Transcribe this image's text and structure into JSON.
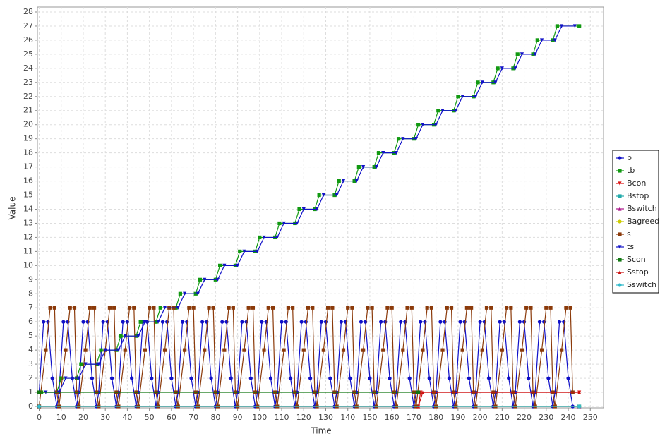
{
  "chart_data": {
    "type": "line",
    "xlabel": "Time",
    "ylabel": "Value",
    "xlim": [
      -0.8,
      256
    ],
    "ylim": [
      -0.1,
      28.35
    ],
    "xticks": [
      0,
      10,
      20,
      30,
      40,
      50,
      60,
      70,
      80,
      90,
      100,
      110,
      120,
      130,
      140,
      150,
      160,
      170,
      180,
      190,
      200,
      210,
      220,
      230,
      240,
      250
    ],
    "yticks": [
      0,
      1,
      2,
      3,
      4,
      5,
      6,
      7,
      8,
      9,
      10,
      11,
      12,
      13,
      14,
      15,
      16,
      17,
      18,
      19,
      20,
      21,
      22,
      23,
      24,
      25,
      26,
      27,
      28
    ],
    "grid": true,
    "legend": "right",
    "series": [
      {
        "name": "b",
        "color": "#1010c8",
        "marker": "circle",
        "x": [
          0,
          2,
          4,
          6,
          8,
          9,
          11,
          13,
          15,
          17,
          18,
          20,
          22,
          24,
          26,
          27,
          29,
          31,
          33,
          35,
          36,
          38,
          40,
          42,
          44,
          45,
          47,
          49,
          51,
          53,
          54,
          56,
          58,
          60,
          62,
          63,
          65,
          67,
          69,
          71,
          72,
          74,
          76,
          78,
          80,
          81,
          83,
          85,
          87,
          89,
          90,
          92,
          94,
          96,
          98,
          99,
          101,
          103,
          105,
          107,
          108,
          110,
          112,
          114,
          116,
          117,
          119,
          121,
          123,
          125,
          126,
          128,
          130,
          132,
          134,
          135,
          137,
          139,
          141,
          143,
          144,
          146,
          148,
          150,
          152,
          153,
          155,
          157,
          159,
          161,
          162,
          164,
          166,
          168,
          170,
          171,
          173,
          175,
          177,
          179,
          180,
          182,
          184,
          186,
          188,
          189,
          191,
          193,
          195,
          197,
          198,
          200,
          202,
          204,
          206,
          207,
          209,
          211,
          213,
          215,
          216,
          218,
          220,
          222,
          224,
          225,
          227,
          229,
          231,
          233,
          234,
          236,
          238,
          240,
          242
        ],
        "values": [
          1,
          6,
          6,
          2,
          0,
          1,
          6,
          6,
          2,
          0,
          1,
          6,
          6,
          2,
          0,
          1,
          6,
          6,
          2,
          0,
          1,
          6,
          6,
          2,
          0,
          1,
          6,
          6,
          2,
          0,
          1,
          6,
          6,
          2,
          0,
          1,
          6,
          6,
          2,
          0,
          1,
          6,
          6,
          2,
          0,
          1,
          6,
          6,
          2,
          0,
          1,
          6,
          6,
          2,
          0,
          1,
          6,
          6,
          2,
          0,
          1,
          6,
          6,
          2,
          0,
          1,
          6,
          6,
          2,
          0,
          1,
          6,
          6,
          2,
          0,
          1,
          6,
          6,
          2,
          0,
          1,
          6,
          6,
          2,
          0,
          1,
          6,
          6,
          2,
          0,
          1,
          6,
          6,
          2,
          0,
          1,
          6,
          6,
          2,
          0,
          1,
          6,
          6,
          2,
          0,
          1,
          6,
          6,
          2,
          0,
          1,
          6,
          6,
          2,
          0,
          1,
          6,
          6,
          2,
          0,
          1,
          6,
          6,
          2,
          0,
          1,
          6,
          6,
          2,
          0,
          1,
          6,
          6,
          2,
          0
        ]
      },
      {
        "name": "tb",
        "color": "#119911",
        "marker": "square",
        "x": [
          1,
          8,
          10,
          17,
          19,
          26,
          28,
          35,
          37,
          44,
          46,
          53,
          55,
          62,
          64,
          71,
          73,
          80,
          82,
          89,
          91,
          98,
          100,
          107,
          109,
          116,
          118,
          125,
          127,
          134,
          136,
          143,
          145,
          152,
          154,
          161,
          163,
          170,
          172,
          179,
          181,
          188,
          190,
          197,
          199,
          206,
          208,
          215,
          217,
          224,
          226,
          233,
          235,
          245
        ],
        "values": [
          1,
          1,
          2,
          2,
          3,
          3,
          4,
          4,
          5,
          5,
          6,
          6,
          7,
          7,
          8,
          8,
          9,
          9,
          10,
          10,
          11,
          11,
          12,
          12,
          13,
          13,
          14,
          14,
          15,
          15,
          16,
          16,
          17,
          17,
          18,
          18,
          19,
          19,
          20,
          20,
          21,
          21,
          22,
          22,
          23,
          23,
          24,
          24,
          25,
          25,
          26,
          26,
          27,
          27
        ]
      },
      {
        "name": "Bcon",
        "color": "#dd1111",
        "marker": "triangle-down",
        "x": [
          0,
          172,
          173,
          245
        ],
        "values": [
          0,
          0,
          1,
          1
        ]
      },
      {
        "name": "Bstop",
        "color": "#22aaaa",
        "marker": "square",
        "x": [
          0,
          245
        ],
        "values": [
          0,
          0
        ]
      },
      {
        "name": "Bswitch",
        "color": "#aa1188",
        "marker": "triangle-up",
        "x": [
          0,
          245
        ],
        "values": [
          0,
          0
        ]
      },
      {
        "name": "Bagreed",
        "color": "#cccc00",
        "marker": "circle",
        "x": [
          0,
          245
        ],
        "values": [
          0,
          0
        ]
      },
      {
        "name": "s",
        "color": "#8b3a0a",
        "marker": "square",
        "x": [
          0,
          3,
          5,
          7,
          8,
          9,
          12,
          14,
          16,
          17,
          18,
          21,
          23,
          25,
          26,
          27,
          30,
          32,
          34,
          35,
          36,
          39,
          41,
          43,
          44,
          45,
          48,
          50,
          52,
          53,
          54,
          57,
          59,
          61,
          62,
          63,
          66,
          68,
          70,
          71,
          72,
          75,
          77,
          79,
          80,
          81,
          84,
          86,
          88,
          89,
          90,
          93,
          95,
          97,
          98,
          99,
          102,
          104,
          106,
          107,
          108,
          111,
          113,
          115,
          116,
          117,
          120,
          122,
          124,
          125,
          126,
          129,
          131,
          133,
          134,
          135,
          138,
          140,
          142,
          143,
          144,
          147,
          149,
          151,
          152,
          153,
          156,
          158,
          160,
          161,
          162,
          165,
          167,
          169,
          170,
          171,
          174,
          176,
          178,
          179,
          180,
          183,
          185,
          187,
          188,
          189,
          192,
          194,
          196,
          197,
          198,
          201,
          203,
          205,
          206,
          207,
          210,
          212,
          214,
          215,
          216,
          219,
          221,
          223,
          224,
          225,
          228,
          230,
          232,
          233,
          234,
          237,
          239,
          241,
          242
        ],
        "values": [
          0,
          4,
          7,
          7,
          1,
          0,
          4,
          7,
          7,
          1,
          0,
          4,
          7,
          7,
          1,
          0,
          4,
          7,
          7,
          1,
          0,
          4,
          7,
          7,
          1,
          0,
          4,
          7,
          7,
          1,
          0,
          4,
          7,
          7,
          1,
          0,
          4,
          7,
          7,
          1,
          0,
          4,
          7,
          7,
          1,
          0,
          4,
          7,
          7,
          1,
          0,
          4,
          7,
          7,
          1,
          0,
          4,
          7,
          7,
          1,
          0,
          4,
          7,
          7,
          1,
          0,
          4,
          7,
          7,
          1,
          0,
          4,
          7,
          7,
          1,
          0,
          4,
          7,
          7,
          1,
          0,
          4,
          7,
          7,
          1,
          0,
          4,
          7,
          7,
          1,
          0,
          4,
          7,
          7,
          1,
          0,
          4,
          7,
          7,
          1,
          0,
          4,
          7,
          7,
          1,
          0,
          4,
          7,
          7,
          1,
          0,
          4,
          7,
          7,
          1,
          0,
          4,
          7,
          7,
          1,
          0,
          4,
          7,
          7,
          1,
          0,
          4,
          7,
          7,
          1,
          0,
          4,
          7,
          7,
          1
        ]
      },
      {
        "name": "ts",
        "color": "#1010c8",
        "marker": "triangle-down",
        "x": [
          3,
          9,
          12,
          18,
          21,
          27,
          30,
          36,
          39,
          45,
          48,
          54,
          57,
          63,
          66,
          72,
          75,
          81,
          84,
          90,
          93,
          99,
          102,
          108,
          111,
          117,
          120,
          126,
          129,
          135,
          138,
          144,
          147,
          153,
          156,
          162,
          165,
          171,
          174,
          180,
          183,
          189,
          192,
          198,
          201,
          207,
          210,
          216,
          219,
          225,
          228,
          234,
          237,
          243
        ],
        "values": [
          1,
          1,
          2,
          2,
          3,
          3,
          4,
          4,
          5,
          5,
          6,
          6,
          7,
          7,
          8,
          8,
          9,
          9,
          10,
          10,
          11,
          11,
          12,
          12,
          13,
          13,
          14,
          14,
          15,
          15,
          16,
          16,
          17,
          17,
          18,
          18,
          19,
          19,
          20,
          20,
          21,
          21,
          22,
          22,
          23,
          23,
          24,
          24,
          25,
          25,
          26,
          26,
          27,
          27
        ]
      },
      {
        "name": "Scon",
        "color": "#117711",
        "marker": "square",
        "x": [
          0,
          172
        ],
        "values": [
          1,
          1
        ]
      },
      {
        "name": "Sstop",
        "color": "#cc1111",
        "marker": "triangle-up",
        "x": [
          172,
          174,
          245
        ],
        "values": [
          0,
          1,
          1
        ]
      },
      {
        "name": "Sswitch",
        "color": "#33bbcc",
        "marker": "circle",
        "x": [
          0,
          245
        ],
        "values": [
          0,
          0
        ]
      }
    ]
  }
}
